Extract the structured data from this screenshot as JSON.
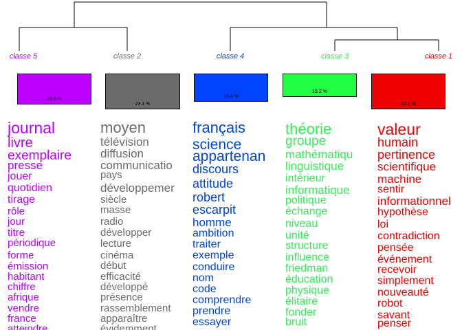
{
  "classes": [
    {
      "label": "classe  5",
      "percent": "19.6 %",
      "color": "#bb00ff",
      "box_color": "#bb00ff",
      "words": [
        "journal",
        "livre",
        "exemplaire",
        "presse",
        "jouer",
        "quotidien",
        "tirage",
        "rôle",
        "jour",
        "titre",
        "périodique",
        "forme",
        "émission",
        "habitant",
        "chiffre",
        "afrique",
        "vendre",
        "france",
        "atteindre"
      ]
    },
    {
      "label": "classe  2",
      "percent": "23.1 %",
      "color": "#6b6b6b",
      "box_color": "#6b6b6b",
      "words": [
        "moyen",
        "télévision",
        "diffusion",
        "communicatio",
        "pays",
        "développemer",
        "siècle",
        "masse",
        "radio",
        "développer",
        "lecture",
        "cinéma",
        "début",
        "efficacité",
        "développé",
        "présence",
        "rassemblement",
        "apparaître",
        "évidemment"
      ]
    },
    {
      "label": "classe  4",
      "percent": "18.4 %",
      "color": "#0044dd",
      "box_color": "#0044ff",
      "words": [
        "français",
        "science",
        "appartenan",
        "discours",
        "attitude",
        "robert",
        "escarpit",
        "homme",
        "ambition",
        "traiter",
        "exemple",
        "conduire",
        "nom",
        "code",
        "comprendre",
        "prendre",
        "essayer"
      ]
    },
    {
      "label": "classe  3",
      "percent": "15.2 %",
      "color": "#33ee55",
      "box_color": "#22ff44",
      "words": [
        "théorie",
        "groupe",
        "mathématiqu",
        "linguistique",
        "intérieur",
        "informatique",
        "politique",
        "échange",
        "niveau",
        "unité",
        "structure",
        "influence",
        "friedman",
        "éducation",
        "physique",
        "élitaire",
        "fonder",
        "bruit"
      ]
    },
    {
      "label": "classe  1",
      "percent": "23.6 %",
      "color": "#ee0000",
      "box_color": "#ee0000",
      "words": [
        "valeur",
        "humain",
        "pertinence",
        "scientifique",
        "machine",
        "sentir",
        "informationnel",
        "hypothèse",
        "loi",
        "contradiction",
        "pensée",
        "événement",
        "recevoir",
        "simplement",
        "nouveauté",
        "robot",
        "savant",
        "penser"
      ]
    }
  ]
}
